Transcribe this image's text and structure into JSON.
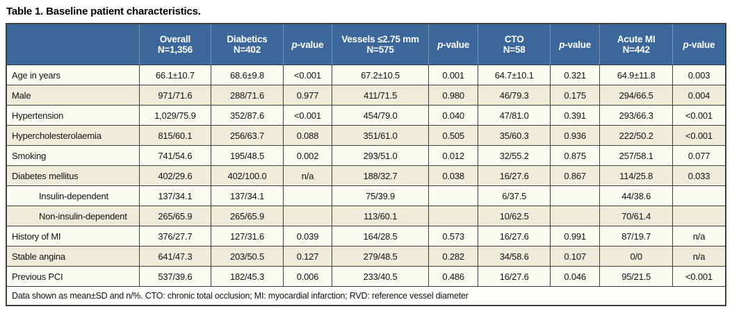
{
  "title": "Table 1. Baseline patient characteristics.",
  "colors": {
    "header_background": "#3b679b",
    "header_separator": "#7e93b1",
    "border_dark": "#3f3e39",
    "border_subrow": "#a29e8e",
    "row_light": "#fbfaf3",
    "row_cream": "#efebdb",
    "footnote_background": "#fdfdf9"
  },
  "table": {
    "columns": [
      {
        "line1": "",
        "line2": ""
      },
      {
        "line1": "Overall",
        "line2": "N=1,356"
      },
      {
        "line1": "Diabetics",
        "line2": "N=402"
      },
      {
        "line1": "p-value",
        "line2": ""
      },
      {
        "line1": "Vessels ≤2.75 mm",
        "line2": "N=575"
      },
      {
        "line1": "p-value",
        "line2": ""
      },
      {
        "line1": "CTO",
        "line2": "N=58"
      },
      {
        "line1": "p-value",
        "line2": ""
      },
      {
        "line1": "Acute MI",
        "line2": "N=442"
      },
      {
        "line1": "p-value",
        "line2": ""
      }
    ],
    "rows": [
      {
        "label": "Age in years",
        "indent": false,
        "sub": false,
        "values": [
          "66.1±10.7",
          "68.6±9.8",
          "<0.001",
          "67.2±10.5",
          "0.001",
          "64.7±10.1",
          "0.321",
          "64.9±11.8",
          "0.003"
        ]
      },
      {
        "label": "Male",
        "indent": false,
        "sub": false,
        "values": [
          "971/71.6",
          "288/71.6",
          "0.977",
          "411/71.5",
          "0.980",
          "46/79.3",
          "0.175",
          "294/66.5",
          "0.004"
        ]
      },
      {
        "label": "Hypertension",
        "indent": false,
        "sub": false,
        "values": [
          "1,029/75.9",
          "352/87.6",
          "<0.001",
          "454/79.0",
          "0.040",
          "47/81.0",
          "0.391",
          "293/66.3",
          "<0.001"
        ]
      },
      {
        "label": "Hypercholesterolaemia",
        "indent": false,
        "sub": false,
        "values": [
          "815/60.1",
          "256/63.7",
          "0.088",
          "351/61.0",
          "0.505",
          "35/60.3",
          "0.936",
          "222/50.2",
          "<0.001"
        ]
      },
      {
        "label": "Smoking",
        "indent": false,
        "sub": false,
        "values": [
          "741/54.6",
          "195/48.5",
          "0.002",
          "293/51.0",
          "0.012",
          "32/55.2",
          "0.875",
          "257/58.1",
          "0.077"
        ]
      },
      {
        "label": "Diabetes mellitus",
        "indent": false,
        "sub": false,
        "values": [
          "402/29.6",
          "402/100.0",
          "n/a",
          "188/32.7",
          "0.038",
          "16/27.6",
          "0.867",
          "114/25.8",
          "0.033"
        ]
      },
      {
        "label": "Insulin-dependent",
        "indent": true,
        "sub": true,
        "values": [
          "137/34.1",
          "137/34.1",
          "",
          "75/39.9",
          "",
          "6/37.5",
          "",
          "44/38.6",
          ""
        ]
      },
      {
        "label": "Non-insulin-dependent",
        "indent": true,
        "sub": true,
        "values": [
          "265/65.9",
          "265/65.9",
          "",
          "113/60.1",
          "",
          "10/62.5",
          "",
          "70/61.4",
          ""
        ]
      },
      {
        "label": "History of MI",
        "indent": false,
        "sub": false,
        "values": [
          "376/27.7",
          "127/31.6",
          "0.039",
          "164/28.5",
          "0.573",
          "16/27.6",
          "0.991",
          "87/19.7",
          "n/a"
        ]
      },
      {
        "label": "Stable angina",
        "indent": false,
        "sub": false,
        "values": [
          "641/47.3",
          "203/50.5",
          "0.127",
          "279/48.5",
          "0.282",
          "34/58.6",
          "0.107",
          "0/0",
          "n/a"
        ]
      },
      {
        "label": "Previous PCI",
        "indent": false,
        "sub": false,
        "values": [
          "537/39.6",
          "182/45.3",
          "0.006",
          "233/40.5",
          "0.486",
          "16/27.6",
          "0.046",
          "95/21.5",
          "<0.001"
        ]
      }
    ],
    "footnote": "Data shown as mean±SD and n/%. CTO: chronic total occlusion; MI: myocardial infarction; RVD: reference vessel diameter"
  }
}
